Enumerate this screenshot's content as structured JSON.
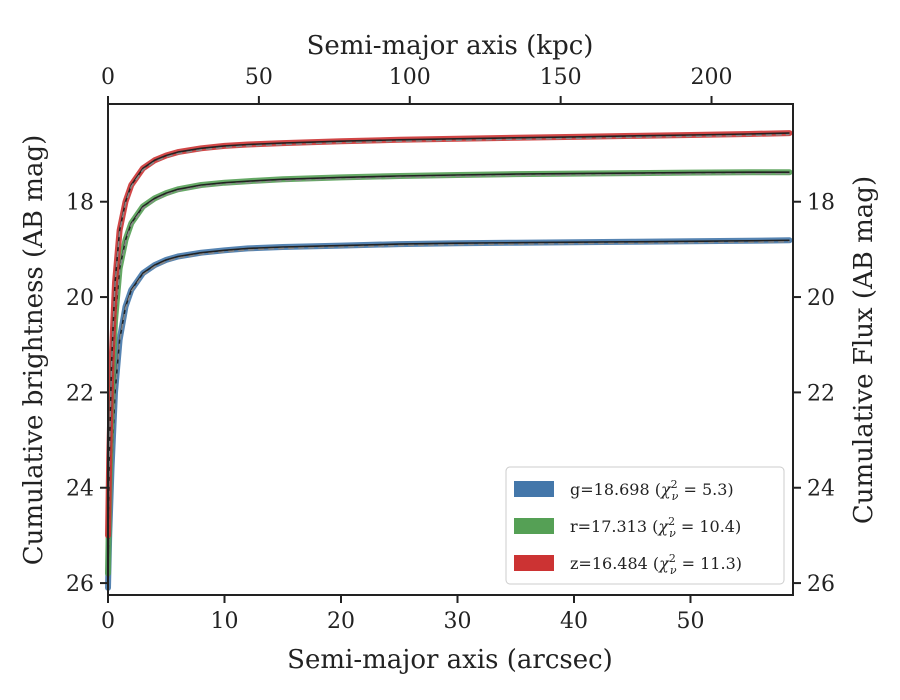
{
  "chart_data": {
    "type": "line",
    "title": "",
    "xlabel": "Semi-major axis (arcsec)",
    "ylabel": "Cumulative brightness (AB mag)",
    "top_xlabel": "Semi-major axis (kpc)",
    "right_ylabel": "Cumulative Flux (AB mag)",
    "xlim": [
      0,
      58.8
    ],
    "ylim": [
      26.25,
      15.95
    ],
    "y_inverted": true,
    "top_xlim": [
      0,
      227
    ],
    "x_ticks": [
      0,
      10,
      20,
      30,
      40,
      50
    ],
    "top_x_ticks": [
      0,
      50,
      100,
      150,
      200
    ],
    "y_ticks": [
      18,
      20,
      22,
      24,
      26
    ],
    "grid": false,
    "legend_position": "lower-right",
    "series": [
      {
        "name": "g=18.698 (χ²ν = 5.3)",
        "legend": {
          "prefix": "g=18.698 (",
          "chi": "χ",
          "sup": "2",
          "sub": "ν",
          "suffix": " = 5.3)"
        },
        "color": "#4477aa",
        "x": [
          0,
          0.1,
          0.3,
          0.6,
          1,
          1.5,
          2,
          3,
          4,
          5,
          6,
          8,
          10,
          12,
          15,
          20,
          25,
          30,
          35,
          40,
          45,
          50,
          55,
          58.5
        ],
        "y": [
          26.1,
          25.0,
          23.6,
          22.0,
          20.9,
          20.2,
          19.85,
          19.5,
          19.33,
          19.22,
          19.15,
          19.07,
          19.02,
          18.98,
          18.95,
          18.92,
          18.89,
          18.87,
          18.86,
          18.85,
          18.84,
          18.83,
          18.82,
          18.81
        ]
      },
      {
        "name": "r=17.313 (χ²ν = 10.4)",
        "legend": {
          "prefix": "r=17.313 (",
          "chi": "χ",
          "sup": "2",
          "sub": "ν",
          "suffix": " = 10.4)"
        },
        "color": "#55a055",
        "x": [
          0,
          0.1,
          0.3,
          0.6,
          1,
          1.5,
          2,
          3,
          4,
          5,
          6,
          8,
          10,
          12,
          15,
          20,
          25,
          30,
          35,
          40,
          45,
          50,
          55,
          58.5
        ],
        "y": [
          25.8,
          24.2,
          22.1,
          20.5,
          19.4,
          18.8,
          18.45,
          18.1,
          17.93,
          17.82,
          17.74,
          17.65,
          17.6,
          17.57,
          17.53,
          17.49,
          17.46,
          17.44,
          17.42,
          17.41,
          17.4,
          17.39,
          17.38,
          17.38
        ]
      },
      {
        "name": "z=16.484 (χ²ν = 11.3)",
        "legend": {
          "prefix": "z=16.484 (",
          "chi": "χ",
          "sup": "2",
          "sub": "ν",
          "suffix": " = 11.3)"
        },
        "color": "#cc3333",
        "x": [
          0,
          0.1,
          0.3,
          0.6,
          1,
          1.5,
          2,
          3,
          4,
          5,
          6,
          8,
          10,
          12,
          15,
          20,
          25,
          30,
          35,
          40,
          45,
          50,
          55,
          58.5
        ],
        "y": [
          25.0,
          23.4,
          21.4,
          19.7,
          18.6,
          18.0,
          17.65,
          17.3,
          17.13,
          17.03,
          16.96,
          16.88,
          16.83,
          16.8,
          16.77,
          16.73,
          16.7,
          16.68,
          16.66,
          16.64,
          16.62,
          16.6,
          16.58,
          16.56
        ]
      }
    ]
  }
}
